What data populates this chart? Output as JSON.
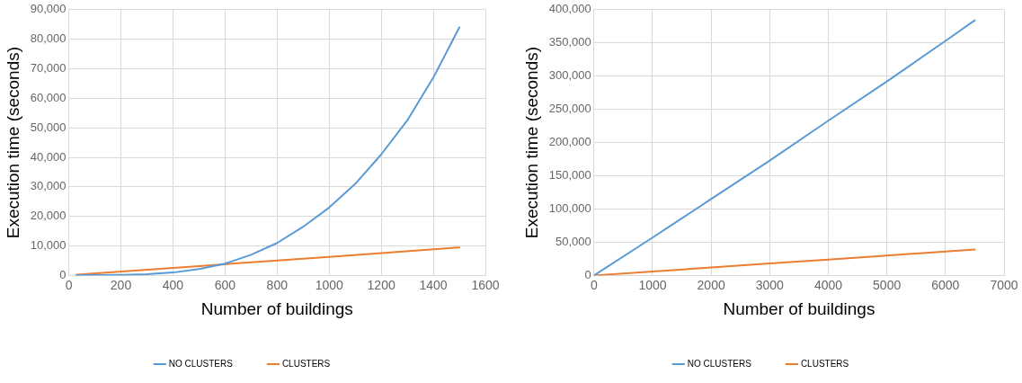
{
  "chart_data": [
    {
      "type": "line",
      "xlabel": "Number of buildings",
      "ylabel": "Execution time (seconds)",
      "xlim": [
        0,
        1600
      ],
      "xticks": [
        0,
        200,
        400,
        600,
        800,
        1000,
        1200,
        1400,
        1600
      ],
      "ylim": [
        0,
        90000
      ],
      "yticks": [
        0,
        {
          "value": 10000,
          "label": "10,000"
        },
        {
          "value": 20000,
          "label": "20,000"
        },
        {
          "value": 30000,
          "label": "30,000"
        },
        {
          "value": 40000,
          "label": "40,000"
        },
        {
          "value": 50000,
          "label": "50,000"
        },
        {
          "value": 60000,
          "label": "60,000"
        },
        {
          "value": 70000,
          "label": "70,000"
        },
        {
          "value": 80000,
          "label": "80,000"
        },
        {
          "value": 90000,
          "label": "90,000"
        }
      ],
      "grid": true,
      "legend": "bottom",
      "marker": "none",
      "line_style": "solid",
      "series": [
        {
          "name": "NO CLUSTERS",
          "color": "#5b9bd5",
          "x": [
            30,
            200,
            300,
            400,
            500,
            600,
            700,
            800,
            900,
            1000,
            1100,
            1200,
            1300,
            1400,
            1500
          ],
          "values": [
            100,
            200,
            400,
            1000,
            2200,
            4000,
            7000,
            11000,
            16500,
            23000,
            31000,
            41000,
            52500,
            67000,
            84000
          ]
        },
        {
          "name": "CLUSTERS",
          "color": "#ed7d31",
          "x": [
            30,
            500,
            1000,
            1500
          ],
          "values": [
            300,
            3200,
            6300,
            9500
          ]
        }
      ]
    },
    {
      "type": "line",
      "xlabel": "Number of buildings",
      "ylabel": "Execution time (seconds)",
      "xlim": [
        0,
        7000
      ],
      "xticks": [
        0,
        1000,
        2000,
        3000,
        4000,
        5000,
        6000,
        7000
      ],
      "ylim": [
        0,
        400000
      ],
      "yticks": [
        0,
        {
          "value": 50000,
          "label": "50,000"
        },
        {
          "value": 100000,
          "label": "100,000"
        },
        {
          "value": 150000,
          "label": "150,000"
        },
        {
          "value": 200000,
          "label": "200,000"
        },
        {
          "value": 250000,
          "label": "250,000"
        },
        {
          "value": 300000,
          "label": "300,000"
        },
        {
          "value": 350000,
          "label": "350,000"
        },
        {
          "value": 400000,
          "label": "400,000"
        }
      ],
      "grid": true,
      "legend": "bottom",
      "marker": "none",
      "line_style": "solid",
      "series": [
        {
          "name": "NO CLUSTERS",
          "color": "#5b9bd5",
          "x": [
            0,
            1000,
            2000,
            3000,
            4000,
            5000,
            6000,
            6500
          ],
          "values": [
            0,
            57000,
            115000,
            173000,
            233000,
            292000,
            353000,
            384000
          ]
        },
        {
          "name": "CLUSTERS",
          "color": "#ed7d31",
          "x": [
            0,
            1000,
            2000,
            3000,
            4000,
            5000,
            6000,
            6500
          ],
          "values": [
            0,
            6000,
            12000,
            18000,
            24000,
            30000,
            36000,
            39000
          ]
        }
      ]
    }
  ]
}
